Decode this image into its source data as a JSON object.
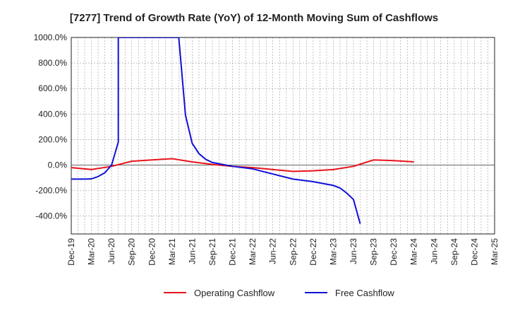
{
  "chart_data": {
    "type": "line",
    "title": "[7277]  Trend of Growth Rate (YoY) of 12-Month Moving Sum of Cashflows",
    "xlabel": "",
    "ylabel": "",
    "x_ticks": [
      "Dec-19",
      "Mar-20",
      "Jun-20",
      "Sep-20",
      "Dec-20",
      "Mar-21",
      "Jun-21",
      "Sep-21",
      "Dec-21",
      "Mar-22",
      "Jun-22",
      "Sep-22",
      "Dec-22",
      "Mar-23",
      "Jun-23",
      "Sep-23",
      "Dec-23",
      "Mar-24",
      "Jun-24",
      "Sep-24",
      "Dec-24",
      "Mar-25"
    ],
    "y_ticks": [
      1000,
      800,
      600,
      400,
      200,
      0,
      -200,
      -400
    ],
    "y_tick_labels": [
      "1000.0%",
      "800.0%",
      "600.0%",
      "400.0%",
      "200.0%",
      "0.0%",
      "-200.0%",
      "-400.0%"
    ],
    "ylim": [
      -540,
      1000
    ],
    "grid": true,
    "legend_position": "bottom",
    "series": [
      {
        "name": "Operating Cashflow",
        "color": "#e8141b",
        "points": [
          [
            "Dec-19",
            -20
          ],
          [
            "Mar-20",
            -35
          ],
          [
            "Jun-20",
            -10
          ],
          [
            "Sep-20",
            30
          ],
          [
            "Dec-20",
            40
          ],
          [
            "Mar-21",
            50
          ],
          [
            "Jun-21",
            25
          ],
          [
            "Sep-21",
            5
          ],
          [
            "Dec-21",
            -10
          ],
          [
            "Mar-22",
            -20
          ],
          [
            "Jun-22",
            -35
          ],
          [
            "Sep-22",
            -50
          ],
          [
            "Dec-22",
            -45
          ],
          [
            "Mar-23",
            -35
          ],
          [
            "Jun-23",
            -10
          ],
          [
            "Sep-23",
            40
          ],
          [
            "Dec-23",
            35
          ],
          [
            "Mar-24",
            25
          ]
        ]
      },
      {
        "name": "Free Cashflow",
        "color": "#1010d8",
        "points": [
          [
            "Dec-19",
            -110
          ],
          [
            "Jan-20",
            -110
          ],
          [
            "Feb-20",
            -110
          ],
          [
            "Mar-20",
            -108
          ],
          [
            "Apr-20",
            -90
          ],
          [
            "May-20",
            -60
          ],
          [
            "Jun-20",
            0
          ],
          [
            "Jul-20",
            180
          ],
          [
            "Jul-20",
            1000
          ],
          [
            "Apr-21",
            1000
          ],
          [
            "May-21",
            390
          ],
          [
            "Jun-21",
            170
          ],
          [
            "Jul-21",
            90
          ],
          [
            "Aug-21",
            45
          ],
          [
            "Sep-21",
            20
          ],
          [
            "Dec-21",
            -10
          ],
          [
            "Mar-22",
            -30
          ],
          [
            "Jun-22",
            -70
          ],
          [
            "Sep-22",
            -110
          ],
          [
            "Dec-22",
            -130
          ],
          [
            "Mar-23",
            -160
          ],
          [
            "Apr-23",
            -180
          ],
          [
            "May-23",
            -220
          ],
          [
            "Jun-23",
            -270
          ],
          [
            "Jul-23",
            -460
          ]
        ]
      }
    ]
  }
}
